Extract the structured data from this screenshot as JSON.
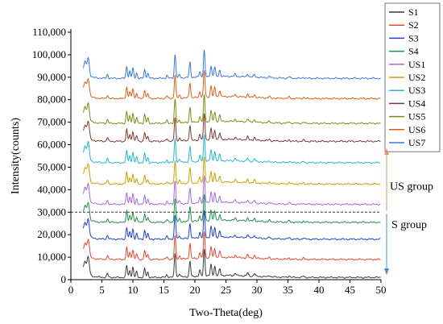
{
  "chart_data": {
    "type": "line",
    "title": "",
    "xlabel": "Two-Theta(deg)",
    "ylabel": "Intensity(counts)",
    "xlim": [
      0,
      50
    ],
    "ylim": [
      0,
      110000
    ],
    "x_ticks": [
      "0",
      "5",
      "10",
      "15",
      "20",
      "25",
      "30",
      "35",
      "40",
      "45",
      "50"
    ],
    "y_ticks": [
      "0",
      "10,000",
      "20,000",
      "30,000",
      "40,000",
      "50,000",
      "60,000",
      "70,000",
      "80,000",
      "90,000",
      "100,000",
      "110,000"
    ],
    "legend_position": "top-right",
    "peak_positions_deg": [
      2.3,
      2.8,
      5.9,
      9.0,
      9.5,
      10.0,
      10.6,
      11.9,
      12.4,
      15.5,
      16.8,
      17.5,
      19.2,
      20.8,
      21.5,
      22.6,
      23.2,
      24.0,
      26.5,
      28.5,
      29.6,
      32.0,
      35.2,
      37.5
    ],
    "series": [
      {
        "name": "S1",
        "color": "#3a3a3a",
        "baseline": 1000
      },
      {
        "name": "S2",
        "color": "#e2472f",
        "baseline": 9000
      },
      {
        "name": "S3",
        "color": "#2040c8",
        "baseline": 18000
      },
      {
        "name": "S4",
        "color": "#1f8f4a",
        "baseline": 25500
      },
      {
        "name": "US1",
        "color": "#a46ad8",
        "baseline": 33500
      },
      {
        "name": "US2",
        "color": "#c9a000",
        "baseline": 42500
      },
      {
        "name": "US3",
        "color": "#22b8cf",
        "baseline": 52000
      },
      {
        "name": "US4",
        "color": "#7a3a30",
        "baseline": 61500
      },
      {
        "name": "US5",
        "color": "#7d8a10",
        "baseline": 69500
      },
      {
        "name": "US6",
        "color": "#d9601a",
        "baseline": 80500
      },
      {
        "name": "US7",
        "color": "#3a78d8",
        "baseline": 89500
      }
    ],
    "divider_y": 30000,
    "groups": [
      {
        "label": "US group",
        "direction": "up"
      },
      {
        "label": "S group",
        "direction": "down"
      }
    ]
  }
}
